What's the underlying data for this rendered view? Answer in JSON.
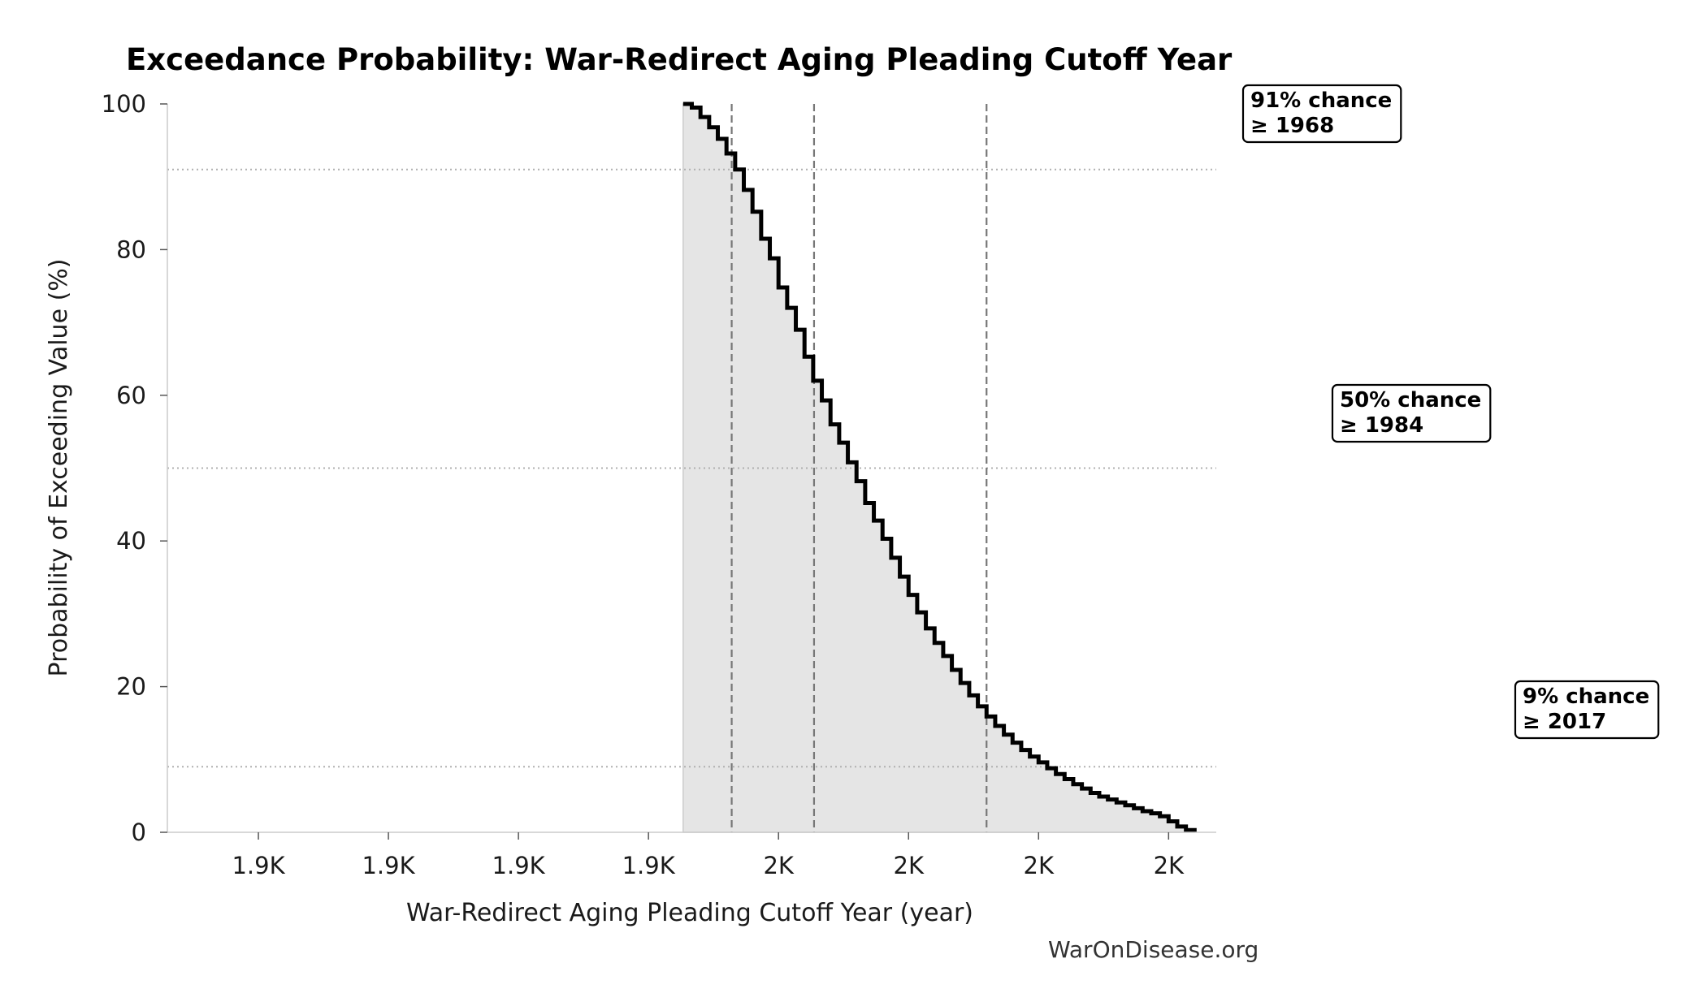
{
  "chart_data": {
    "type": "area",
    "title": "Exceedance Probability: War-Redirect Aging Pleading Cutoff Year",
    "xlabel": "War-Redirect Aging Pleading Cutoff Year (year)",
    "ylabel": "Probability of Exceeding Value (%)",
    "xlim": [
      1914.5,
      2035.5
    ],
    "ylim": [
      0,
      100
    ],
    "x_ticks": [
      1925,
      1940,
      1955,
      1970,
      1985,
      2000,
      2015,
      2030
    ],
    "x_tick_labels": [
      "1.9K",
      "1.9K",
      "1.9K",
      "1.9K",
      "2K",
      "2K",
      "2K",
      "2K"
    ],
    "y_ticks": [
      0,
      20,
      40,
      60,
      80,
      100
    ],
    "y_tick_labels": [
      "0",
      "20",
      "40",
      "60",
      "80",
      "100"
    ],
    "grid": false,
    "series": [
      {
        "x": [
          1974,
          1975,
          1976,
          1977,
          1978,
          1979,
          1980,
          1981,
          1982,
          1983,
          1984,
          1985,
          1986,
          1987,
          1988,
          1989,
          1990,
          1991,
          1992,
          1993,
          1994,
          1995,
          1996,
          1997,
          1998,
          1999,
          2000,
          2001,
          2002,
          2003,
          2004,
          2005,
          2006,
          2007,
          2008,
          2009,
          2010,
          2011,
          2012,
          2013,
          2014,
          2015,
          2016,
          2017,
          2018,
          2019,
          2020,
          2021,
          2022,
          2023,
          2024,
          2025,
          2026,
          2027,
          2028,
          2029,
          2030,
          2031,
          2032,
          2033
        ],
        "y": [
          100,
          99.5,
          98.2,
          96.8,
          95.2,
          93.2,
          91,
          88.2,
          85.2,
          81.5,
          78.8,
          74.8,
          72,
          69,
          65.3,
          62,
          59.3,
          56,
          53.5,
          50.8,
          48.2,
          45.2,
          42.8,
          40.3,
          37.7,
          35.1,
          32.6,
          30.2,
          28,
          26,
          24.2,
          22.3,
          20.5,
          18.8,
          17.3,
          15.9,
          14.6,
          13.4,
          12.3,
          11.3,
          10.4,
          9.6,
          8.8,
          8,
          7.3,
          6.6,
          6,
          5.4,
          4.9,
          4.5,
          4.1,
          3.7,
          3.3,
          2.9,
          2.6,
          2.2,
          1.5,
          0.8,
          0.3,
          0
        ]
      }
    ],
    "thresholds": [
      {
        "probability": 91,
        "value": 1968,
        "label_line1": "91% chance",
        "label_line2": "≥ 1968"
      },
      {
        "probability": 50,
        "value": 1984,
        "label_line1": "50% chance",
        "label_line2": "≥ 1984"
      },
      {
        "probability": 9,
        "value": 2017,
        "label_line1": "9% chance",
        "label_line2": "≥ 2017"
      }
    ],
    "threshold_x_positions": [
      1979.6,
      1989.1,
      2009
    ],
    "colors": {
      "line": "#000000",
      "fill": "#e5e5e5",
      "reference": "#777777",
      "horizontal_ref": "#b0b0b0"
    }
  },
  "watermark": "WarOnDisease.org"
}
